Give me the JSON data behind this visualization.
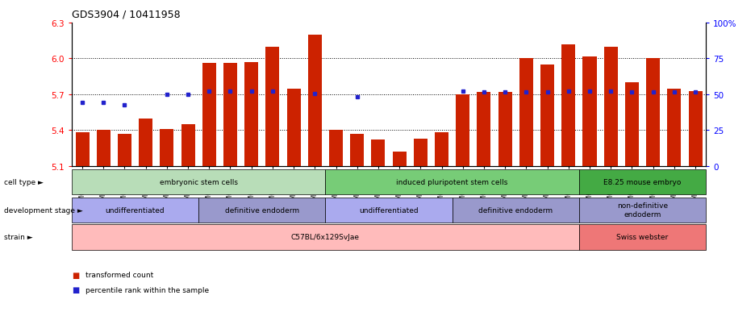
{
  "title": "GDS3904 / 10411958",
  "samples": [
    "GSM668567",
    "GSM668568",
    "GSM668569",
    "GSM668582",
    "GSM668583",
    "GSM668584",
    "GSM668564",
    "GSM668565",
    "GSM668566",
    "GSM668579",
    "GSM668580",
    "GSM668581",
    "GSM668585",
    "GSM668586",
    "GSM668587",
    "GSM668588",
    "GSM668589",
    "GSM668590",
    "GSM668576",
    "GSM668577",
    "GSM668578",
    "GSM668591",
    "GSM668592",
    "GSM668593",
    "GSM668573",
    "GSM668574",
    "GSM668575",
    "GSM668570",
    "GSM668571",
    "GSM668572"
  ],
  "bar_values": [
    5.38,
    5.4,
    5.37,
    5.5,
    5.41,
    5.45,
    5.96,
    5.96,
    5.97,
    6.1,
    5.75,
    6.2,
    5.4,
    5.37,
    5.32,
    5.22,
    5.33,
    5.38,
    5.7,
    5.72,
    5.72,
    6.0,
    5.95,
    6.12,
    6.02,
    6.1,
    5.8,
    6.0,
    5.75,
    5.73
  ],
  "dot_values": [
    5.63,
    5.63,
    5.61,
    null,
    5.7,
    5.7,
    5.73,
    5.73,
    5.73,
    5.73,
    null,
    5.71,
    null,
    5.68,
    null,
    null,
    null,
    null,
    5.73,
    5.72,
    5.72,
    5.72,
    5.72,
    5.73,
    5.73,
    5.73,
    5.72,
    5.72,
    5.72,
    5.72
  ],
  "ylim_left": [
    5.1,
    6.3
  ],
  "ylim_right": [
    0,
    100
  ],
  "yticks_left": [
    5.1,
    5.4,
    5.7,
    6.0,
    6.3
  ],
  "yticks_right": [
    0,
    25,
    50,
    75,
    100
  ],
  "bar_color": "#cc2200",
  "dot_color": "#2222cc",
  "bar_bottom": 5.1,
  "cell_type_groups": [
    {
      "label": "embryonic stem cells",
      "start": 0,
      "end": 11,
      "color": "#b8ddb8"
    },
    {
      "label": "induced pluripotent stem cells",
      "start": 12,
      "end": 23,
      "color": "#77cc77"
    },
    {
      "label": "E8.25 mouse embryo",
      "start": 24,
      "end": 29,
      "color": "#44aa44"
    }
  ],
  "dev_stage_groups": [
    {
      "label": "undifferentiated",
      "start": 0,
      "end": 5,
      "color": "#aaaaee"
    },
    {
      "label": "definitive endoderm",
      "start": 6,
      "end": 11,
      "color": "#9999cc"
    },
    {
      "label": "undifferentiated",
      "start": 12,
      "end": 17,
      "color": "#aaaaee"
    },
    {
      "label": "definitive endoderm",
      "start": 18,
      "end": 23,
      "color": "#9999cc"
    },
    {
      "label": "non-definitive\nendoderm",
      "start": 24,
      "end": 29,
      "color": "#9999cc"
    }
  ],
  "strain_groups": [
    {
      "label": "C57BL/6x129SvJae",
      "start": 0,
      "end": 23,
      "color": "#ffbbbb"
    },
    {
      "label": "Swiss webster",
      "start": 24,
      "end": 29,
      "color": "#ee7777"
    }
  ],
  "legend_bar_label": "transformed count",
  "legend_dot_label": "percentile rank within the sample"
}
